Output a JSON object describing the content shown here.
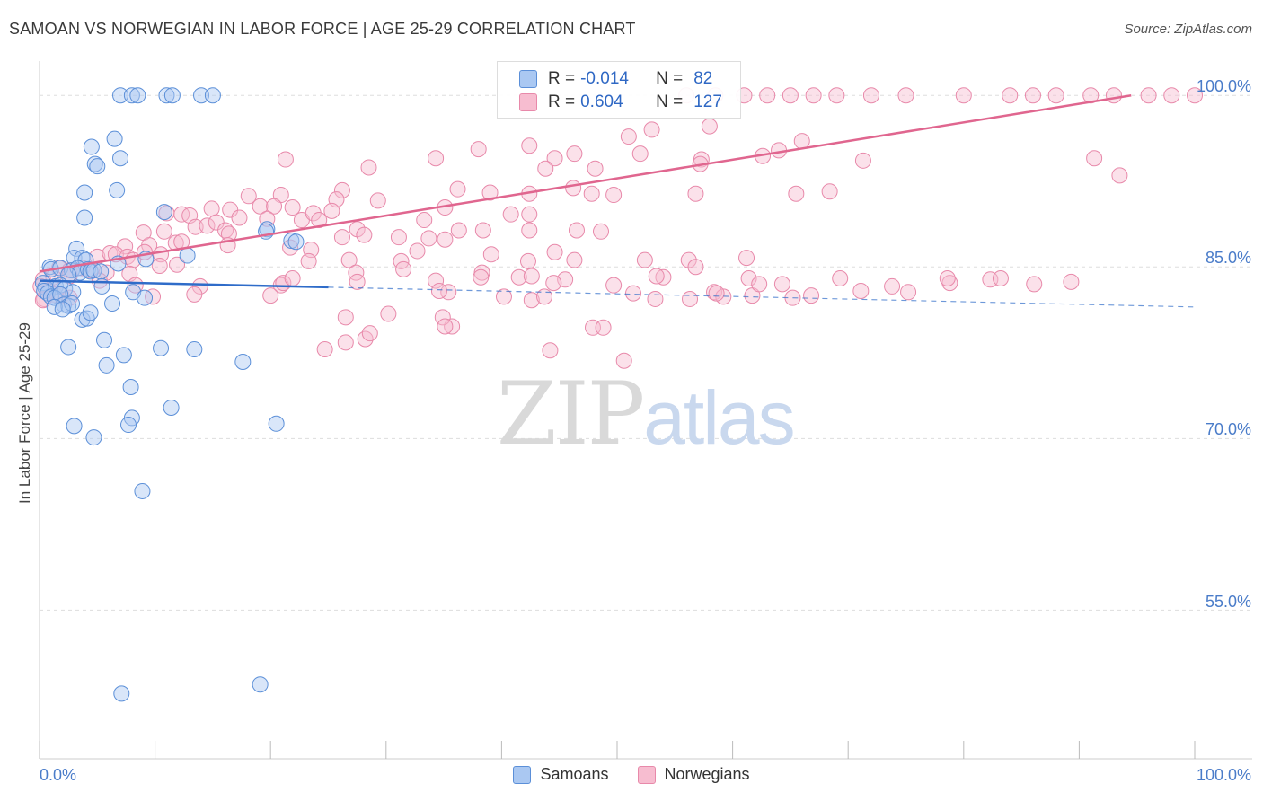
{
  "header": {
    "title": "SAMOAN VS NORWEGIAN IN LABOR FORCE | AGE 25-29 CORRELATION CHART",
    "source": "Source: ZipAtlas.com"
  },
  "watermark": {
    "zip": "ZIP",
    "atlas": "atlas"
  },
  "legend_top": {
    "rows": [
      {
        "r_label": "R =",
        "r_value": "-0.014",
        "n_label": "N =",
        "n_value": "82"
      },
      {
        "r_label": "R =",
        "r_value": "0.604",
        "n_label": "N =",
        "n_value": "127"
      }
    ]
  },
  "legend_bottom": {
    "items": [
      "Samoans",
      "Norwegians"
    ]
  },
  "colors": {
    "samoan_fill": "#aac8f2",
    "samoan_stroke": "#5b8fd8",
    "samoan_line": "#2f6cc9",
    "norwegian_fill": "#f7bdd0",
    "norwegian_stroke": "#e889aa",
    "norwegian_line": "#e0668f",
    "tick_text": "#4a7cc9",
    "grid": "#dddddd"
  },
  "chart_data": {
    "type": "scatter",
    "title": "SAMOAN VS NORWEGIAN IN LABOR FORCE | AGE 25-29 CORRELATION CHART",
    "xlabel": "",
    "ylabel": "In Labor Force | Age 25-29",
    "xlim": [
      0,
      100
    ],
    "ylim": [
      42,
      103
    ],
    "x_tick_labels": [
      "0.0%",
      "100.0%"
    ],
    "y_ticks": [
      100,
      85,
      70,
      55
    ],
    "y_tick_labels": [
      "100.0%",
      "85.0%",
      "70.0%",
      "55.0%"
    ],
    "grid": true,
    "series": [
      {
        "name": "Samoans",
        "r": -0.014,
        "n": 82,
        "trend": {
          "x0": 0,
          "y0": 83.8,
          "x1": 100,
          "y1": 81.5,
          "solid_until_x": 25
        },
        "points": [
          [
            7,
            100
          ],
          [
            8,
            100
          ],
          [
            8.5,
            100
          ],
          [
            11,
            100
          ],
          [
            11.5,
            100
          ],
          [
            14,
            100
          ],
          [
            15,
            100
          ],
          [
            6.5,
            96.2
          ],
          [
            4.5,
            95.5
          ],
          [
            7,
            94.5
          ],
          [
            4.8,
            94
          ],
          [
            5,
            93.8
          ],
          [
            3.9,
            91.5
          ],
          [
            6.7,
            91.7
          ],
          [
            3.9,
            89.3
          ],
          [
            10.8,
            89.8
          ],
          [
            19.7,
            88.3
          ],
          [
            19.6,
            88.1
          ],
          [
            21.8,
            87.3
          ],
          [
            22.2,
            87.2
          ],
          [
            3.2,
            86.6
          ],
          [
            3,
            85.8
          ],
          [
            3.7,
            85.8
          ],
          [
            4,
            85.6
          ],
          [
            9.2,
            85.7
          ],
          [
            12.8,
            86
          ],
          [
            0.9,
            85
          ],
          [
            1,
            84.8
          ],
          [
            1.8,
            84.9
          ],
          [
            2.8,
            84.7
          ],
          [
            3.3,
            84.9
          ],
          [
            3.5,
            84.5
          ],
          [
            4.2,
            84.8
          ],
          [
            4.4,
            84.6
          ],
          [
            4.7,
            84.7
          ],
          [
            5.3,
            84.6
          ],
          [
            6.8,
            85.3
          ],
          [
            2.5,
            84.3
          ],
          [
            0.3,
            83.6
          ],
          [
            0.5,
            83.2
          ],
          [
            1.4,
            83.3
          ],
          [
            1.8,
            83.4
          ],
          [
            2.2,
            83.1
          ],
          [
            2.9,
            82.8
          ],
          [
            5.4,
            83.3
          ],
          [
            8.1,
            82.8
          ],
          [
            0.4,
            82.9
          ],
          [
            0.7,
            82.7
          ],
          [
            1,
            82.4
          ],
          [
            1.3,
            82.3
          ],
          [
            1.8,
            82.6
          ],
          [
            2.1,
            81.7
          ],
          [
            2.5,
            81.6
          ],
          [
            2.8,
            81.8
          ],
          [
            6.3,
            81.8
          ],
          [
            9.1,
            82.3
          ],
          [
            1.3,
            81.5
          ],
          [
            2,
            81.3
          ],
          [
            3.7,
            80.4
          ],
          [
            4.1,
            80.5
          ],
          [
            4.4,
            81
          ],
          [
            5.6,
            78.6
          ],
          [
            2.5,
            78
          ],
          [
            10.5,
            77.9
          ],
          [
            13.4,
            77.8
          ],
          [
            7.3,
            77.3
          ],
          [
            5.8,
            76.4
          ],
          [
            17.6,
            76.7
          ],
          [
            7.9,
            74.5
          ],
          [
            11.4,
            72.7
          ],
          [
            8,
            71.8
          ],
          [
            7.7,
            71.2
          ],
          [
            3,
            71.1
          ],
          [
            20.5,
            71.3
          ],
          [
            4.7,
            70.1
          ],
          [
            8.9,
            65.4
          ],
          [
            7.1,
            47.7
          ],
          [
            19.1,
            48.5
          ]
        ]
      },
      {
        "name": "Norwegians",
        "r": 0.604,
        "n": 127,
        "trend": {
          "x0": 0,
          "y0": 84.6,
          "x1": 94.5,
          "y1": 100
        },
        "points": [
          [
            56,
            100
          ],
          [
            58.5,
            100
          ],
          [
            61,
            100
          ],
          [
            63,
            100
          ],
          [
            65,
            100
          ],
          [
            67,
            100
          ],
          [
            69,
            100
          ],
          [
            72,
            100
          ],
          [
            75,
            100
          ],
          [
            80,
            100
          ],
          [
            84,
            100
          ],
          [
            86,
            100
          ],
          [
            88,
            100
          ],
          [
            91,
            100
          ],
          [
            93,
            100
          ],
          [
            96,
            100
          ],
          [
            98,
            100
          ],
          [
            100,
            100
          ],
          [
            53,
            97
          ],
          [
            58,
            97.3
          ],
          [
            51,
            96.4
          ],
          [
            64,
            95.2
          ],
          [
            66,
            96
          ],
          [
            42.4,
            95.6
          ],
          [
            38,
            95.3
          ],
          [
            52,
            94.9
          ],
          [
            21.3,
            94.4
          ],
          [
            34.3,
            94.5
          ],
          [
            44.6,
            94.5
          ],
          [
            46.3,
            94.9
          ],
          [
            57.3,
            94.4
          ],
          [
            62.6,
            94.7
          ],
          [
            71.3,
            94.3
          ],
          [
            91.3,
            94.5
          ],
          [
            28.5,
            93.7
          ],
          [
            43.8,
            93.6
          ],
          [
            48.1,
            93.6
          ],
          [
            57.2,
            94
          ],
          [
            93.5,
            93
          ],
          [
            26.2,
            91.7
          ],
          [
            36.2,
            91.8
          ],
          [
            46.2,
            91.9
          ],
          [
            42.4,
            91.4
          ],
          [
            39,
            91.5
          ],
          [
            47.8,
            91.4
          ],
          [
            49.7,
            91.3
          ],
          [
            56.8,
            91.4
          ],
          [
            65.5,
            91.4
          ],
          [
            68.4,
            91.6
          ],
          [
            18.1,
            91.2
          ],
          [
            20.9,
            91.3
          ],
          [
            25.7,
            90.9
          ],
          [
            29.3,
            90.8
          ],
          [
            14.9,
            90.1
          ],
          [
            16.5,
            90
          ],
          [
            19.1,
            90.3
          ],
          [
            20.3,
            90.3
          ],
          [
            21.9,
            90.2
          ],
          [
            25.3,
            89.9
          ],
          [
            35.1,
            90.2
          ],
          [
            42.4,
            89.6
          ],
          [
            11,
            89.7
          ],
          [
            12.3,
            89.6
          ],
          [
            13,
            89.5
          ],
          [
            17.3,
            89.3
          ],
          [
            19.7,
            89.2
          ],
          [
            22.7,
            89.1
          ],
          [
            23.7,
            89.7
          ],
          [
            24.2,
            89.1
          ],
          [
            33.3,
            89.1
          ],
          [
            40.8,
            89.6
          ],
          [
            13.5,
            88.5
          ],
          [
            14.5,
            88.6
          ],
          [
            15.3,
            88.9
          ],
          [
            16.1,
            88.2
          ],
          [
            27.5,
            88.3
          ],
          [
            36.3,
            88.2
          ],
          [
            38.4,
            88.2
          ],
          [
            42.4,
            88.2
          ],
          [
            46.5,
            88.2
          ],
          [
            48.6,
            88.1
          ],
          [
            9,
            88
          ],
          [
            10.8,
            88.1
          ],
          [
            16.4,
            87.9
          ],
          [
            26.2,
            87.6
          ],
          [
            28.1,
            87.8
          ],
          [
            31.1,
            87.6
          ],
          [
            33.7,
            87.5
          ],
          [
            35.1,
            87.4
          ],
          [
            7.4,
            86.8
          ],
          [
            9.5,
            86.9
          ],
          [
            11.8,
            87.1
          ],
          [
            12.3,
            87.2
          ],
          [
            16.3,
            86.9
          ],
          [
            21.7,
            86.7
          ],
          [
            23.5,
            86.5
          ],
          [
            32.7,
            86.4
          ],
          [
            39.1,
            86.1
          ],
          [
            44.6,
            86.3
          ],
          [
            5,
            85.9
          ],
          [
            6.1,
            86.2
          ],
          [
            6.6,
            86.1
          ],
          [
            7.6,
            85.9
          ],
          [
            8.1,
            85.6
          ],
          [
            9.1,
            86.3
          ],
          [
            10.5,
            86.1
          ],
          [
            23.3,
            85.5
          ],
          [
            26.8,
            85.6
          ],
          [
            31.3,
            85.5
          ],
          [
            42.3,
            85.5
          ],
          [
            46.3,
            85.6
          ],
          [
            52.4,
            85.6
          ],
          [
            56.2,
            85.6
          ],
          [
            61.2,
            85.8
          ],
          [
            1.7,
            84.9
          ],
          [
            2.6,
            84.7
          ],
          [
            3.7,
            84.9
          ],
          [
            4.4,
            84.7
          ],
          [
            5.8,
            84.5
          ],
          [
            7.8,
            84.4
          ],
          [
            10.4,
            85.1
          ],
          [
            11.9,
            85.2
          ],
          [
            27.4,
            84.5
          ],
          [
            31.5,
            84.8
          ],
          [
            38.3,
            84.5
          ],
          [
            41.5,
            84.1
          ],
          [
            56.8,
            85
          ],
          [
            0.3,
            83.9
          ],
          [
            1.2,
            84.1
          ],
          [
            2.6,
            84.2
          ],
          [
            5.2,
            83.8
          ],
          [
            8.3,
            83.4
          ],
          [
            13.9,
            83.3
          ],
          [
            20.9,
            83.4
          ],
          [
            27.5,
            83.7
          ],
          [
            34.3,
            83.8
          ],
          [
            38.2,
            84.1
          ],
          [
            45.5,
            83.9
          ],
          [
            54,
            84.1
          ],
          [
            61.4,
            84
          ],
          [
            58.4,
            82.8
          ],
          [
            0.1,
            83.3
          ],
          [
            0.8,
            82.9
          ],
          [
            0.4,
            82.2
          ],
          [
            1.3,
            82.6
          ],
          [
            1.9,
            82.5
          ],
          [
            2.6,
            82.3
          ],
          [
            9.8,
            82.4
          ],
          [
            13.4,
            82.6
          ],
          [
            35.4,
            82.8
          ],
          [
            42.6,
            82.1
          ],
          [
            51.4,
            82.7
          ],
          [
            53.3,
            82.2
          ],
          [
            56.3,
            82.2
          ],
          [
            59.2,
            82.4
          ],
          [
            65.2,
            82.3
          ],
          [
            66.8,
            82.5
          ],
          [
            71.1,
            82.9
          ],
          [
            73.8,
            83.3
          ],
          [
            75.2,
            82.8
          ],
          [
            78.8,
            83.6
          ],
          [
            82.3,
            83.9
          ],
          [
            86.1,
            83.5
          ],
          [
            89.3,
            83.7
          ],
          [
            0.3,
            82.1
          ],
          [
            30.2,
            80.9
          ],
          [
            35.7,
            79.8
          ],
          [
            34.9,
            80.6
          ],
          [
            28.2,
            78.7
          ],
          [
            47.9,
            79.7
          ],
          [
            28.6,
            79.2
          ],
          [
            48.8,
            79.7
          ],
          [
            64.3,
            83.5
          ],
          [
            21.1,
            83.6
          ],
          [
            26.5,
            80.6
          ],
          [
            40.2,
            82.4
          ],
          [
            21.9,
            84
          ],
          [
            42.6,
            84.2
          ],
          [
            44.5,
            83.6
          ],
          [
            49.7,
            83.4
          ],
          [
            53.4,
            84.2
          ],
          [
            24.7,
            77.8
          ],
          [
            44.2,
            77.7
          ],
          [
            50.6,
            76.8
          ],
          [
            34.6,
            82.9
          ],
          [
            43.7,
            82.4
          ],
          [
            35.1,
            79.8
          ],
          [
            20,
            82.5
          ],
          [
            26.5,
            78.4
          ],
          [
            58.6,
            82.7
          ],
          [
            61.7,
            82.5
          ],
          [
            69.3,
            84
          ],
          [
            62.3,
            83.5
          ],
          [
            78.6,
            84
          ],
          [
            83.2,
            84
          ]
        ]
      }
    ]
  }
}
